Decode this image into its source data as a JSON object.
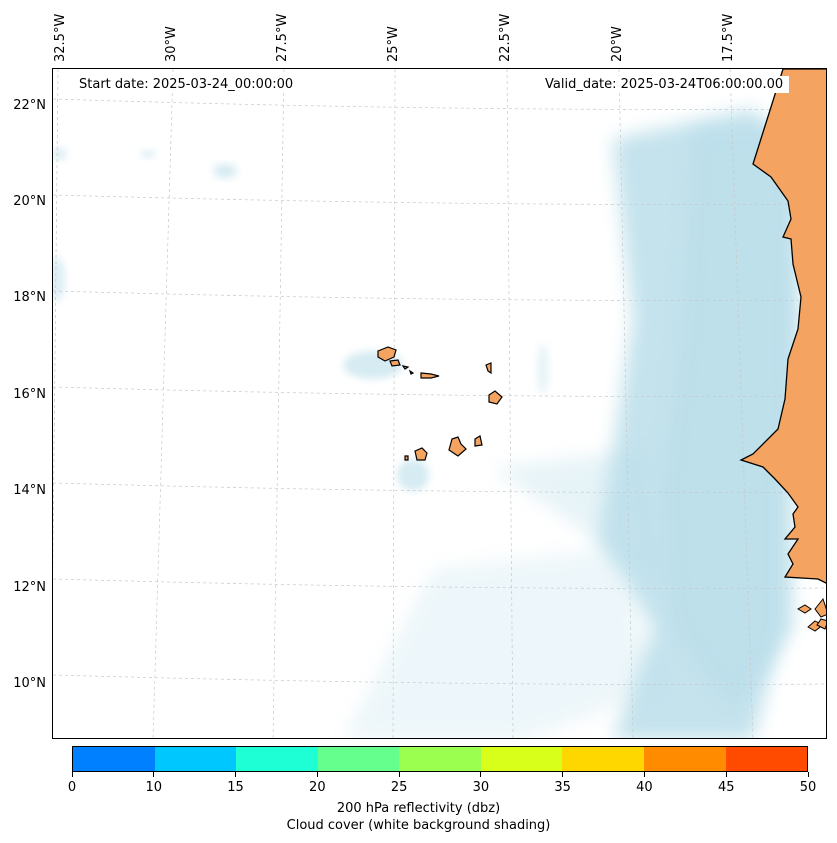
{
  "map": {
    "start_date": "Start date: 2025-03-24_00:00:00",
    "valid_date": "Valid_date: 2025-03-24T06:00:00.00",
    "longitude_labels": [
      "32.5°W",
      "30°W",
      "27.5°W",
      "25°W",
      "22.5°W",
      "20°W",
      "17.5°W"
    ],
    "latitude_labels": [
      "22°N",
      "20°N",
      "18°N",
      "16°N",
      "14°N",
      "12°N",
      "10°N"
    ],
    "land_color": "#f4a460",
    "cloud_color": "#add8e6"
  },
  "colorbar": {
    "ticks": [
      "0",
      "10",
      "15",
      "20",
      "25",
      "30",
      "35",
      "40",
      "45",
      "50"
    ],
    "colors": [
      "#0080ff",
      "#00c8ff",
      "#1effd6",
      "#64ff8c",
      "#9bff50",
      "#d8ff1a",
      "#ffd700",
      "#ff8c00",
      "#ff4b00"
    ],
    "title": "200 hPa reflectivity (dbz)",
    "subtitle": "Cloud cover (white background shading)"
  }
}
